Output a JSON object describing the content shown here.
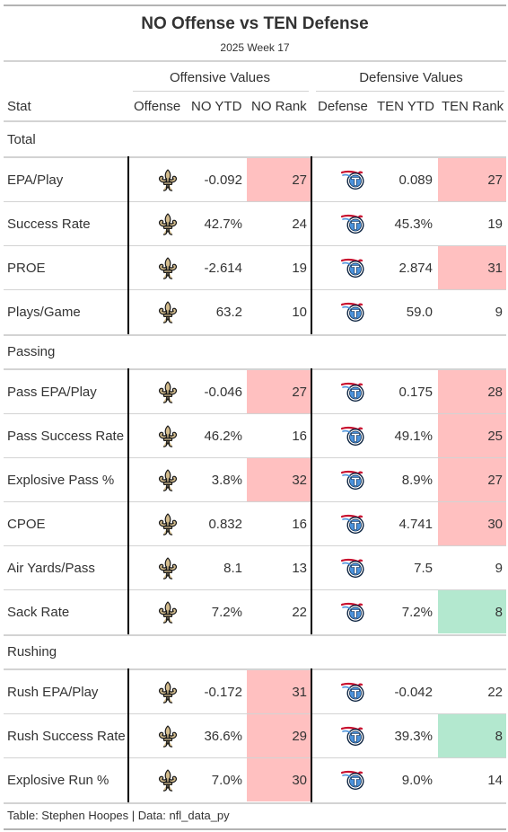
{
  "header": {
    "title": "NO Offense vs TEN Defense",
    "subtitle": "2025 Week 17"
  },
  "spanners": {
    "offense": "Offensive Values",
    "defense": "Defensive Values"
  },
  "columns": {
    "stat": "Stat",
    "offense": "Offense",
    "no_ytd": "NO YTD",
    "no_rank": "NO Rank",
    "defense": "Defense",
    "ten_ytd": "TEN YTD",
    "ten_rank": "TEN Rank"
  },
  "colors": {
    "bad": "#ffc0c0",
    "good": "#b3e8cf",
    "saints_gold": "#d3bc8d",
    "titans_navy": "#0c2340",
    "titans_blue": "#4b92db",
    "titans_red": "#c8102e"
  },
  "icons": {
    "offense": "fleur-de-lis-icon",
    "defense": "titans-logo-icon"
  },
  "groups": [
    {
      "label": "Total",
      "rows": [
        {
          "stat": "EPA/Play",
          "no_ytd": "-0.092",
          "no_rank": "27",
          "no_level": "bad",
          "ten_ytd": "0.089",
          "ten_rank": "27",
          "ten_level": "bad"
        },
        {
          "stat": "Success Rate",
          "no_ytd": "42.7%",
          "no_rank": "24",
          "no_level": "none",
          "ten_ytd": "45.3%",
          "ten_rank": "19",
          "ten_level": "none"
        },
        {
          "stat": "PROE",
          "no_ytd": "-2.614",
          "no_rank": "19",
          "no_level": "none",
          "ten_ytd": "2.874",
          "ten_rank": "31",
          "ten_level": "bad"
        },
        {
          "stat": "Plays/Game",
          "no_ytd": "63.2",
          "no_rank": "10",
          "no_level": "none",
          "ten_ytd": "59.0",
          "ten_rank": "9",
          "ten_level": "none"
        }
      ]
    },
    {
      "label": "Passing",
      "rows": [
        {
          "stat": "Pass EPA/Play",
          "no_ytd": "-0.046",
          "no_rank": "27",
          "no_level": "bad",
          "ten_ytd": "0.175",
          "ten_rank": "28",
          "ten_level": "bad"
        },
        {
          "stat": "Pass Success Rate",
          "no_ytd": "46.2%",
          "no_rank": "16",
          "no_level": "none",
          "ten_ytd": "49.1%",
          "ten_rank": "25",
          "ten_level": "bad"
        },
        {
          "stat": "Explosive Pass %",
          "no_ytd": "3.8%",
          "no_rank": "32",
          "no_level": "bad",
          "ten_ytd": "8.9%",
          "ten_rank": "27",
          "ten_level": "bad"
        },
        {
          "stat": "CPOE",
          "no_ytd": "0.832",
          "no_rank": "16",
          "no_level": "none",
          "ten_ytd": "4.741",
          "ten_rank": "30",
          "ten_level": "bad"
        },
        {
          "stat": "Air Yards/Pass",
          "no_ytd": "8.1",
          "no_rank": "13",
          "no_level": "none",
          "ten_ytd": "7.5",
          "ten_rank": "9",
          "ten_level": "none"
        },
        {
          "stat": "Sack Rate",
          "no_ytd": "7.2%",
          "no_rank": "22",
          "no_level": "none",
          "ten_ytd": "7.2%",
          "ten_rank": "8",
          "ten_level": "good"
        }
      ]
    },
    {
      "label": "Rushing",
      "rows": [
        {
          "stat": "Rush EPA/Play",
          "no_ytd": "-0.172",
          "no_rank": "31",
          "no_level": "bad",
          "ten_ytd": "-0.042",
          "ten_rank": "22",
          "ten_level": "none"
        },
        {
          "stat": "Rush Success Rate",
          "no_ytd": "36.6%",
          "no_rank": "29",
          "no_level": "bad",
          "ten_ytd": "39.3%",
          "ten_rank": "8",
          "ten_level": "good"
        },
        {
          "stat": "Explosive Run %",
          "no_ytd": "7.0%",
          "no_rank": "30",
          "no_level": "bad",
          "ten_ytd": "9.0%",
          "ten_rank": "14",
          "ten_level": "none"
        }
      ]
    }
  ],
  "footer": "Table: Stephen Hoopes | Data: nfl_data_py"
}
